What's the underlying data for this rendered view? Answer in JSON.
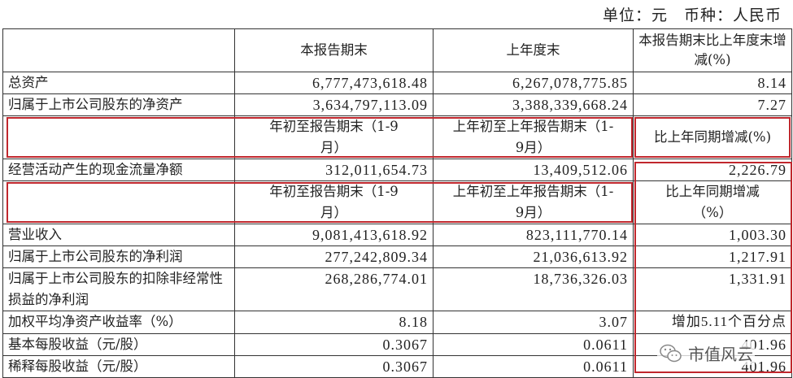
{
  "unit_line": "单位：元　币种：人民币",
  "header1": {
    "c1": "本报告期末",
    "c2": "上年度末",
    "c3": "本报告期末比上年度末增减(%)"
  },
  "rows1": [
    {
      "label": "总资产",
      "v1": "6,777,473,618.48",
      "v2": "6,267,078,775.85",
      "v3": "8.14"
    },
    {
      "label": "归属于上市公司股东的净资产",
      "v1": "3,634,797,113.09",
      "v2": "3,388,339,668.24",
      "v3": "7.27"
    }
  ],
  "header2": {
    "c1": "年初至报告期末（1-9月）",
    "c2": "上年初至上年报告期末（1-9月）",
    "c3": "比上年同期增减(%)"
  },
  "rows2": [
    {
      "label": "经营活动产生的现金流量净额",
      "v1": "312,011,654.73",
      "v2": "13,409,512.06",
      "v3": "2,226.79"
    }
  ],
  "header3": {
    "c1": "年初至报告期末（1-9月）",
    "c2": "上年初至上年报告期末（1-9月）",
    "c3": "比上年同期增减（%）"
  },
  "rows3": [
    {
      "label": "营业收入",
      "v1": "9,081,413,618.92",
      "v2": "823,111,770.14",
      "v3": "1,003.30"
    },
    {
      "label": "归属于上市公司股东的净利润",
      "v1": "277,242,809.34",
      "v2": "21,036,613.92",
      "v3": "1,217.91"
    },
    {
      "label": "归属于上市公司股东的扣除非经常性损益的净利润",
      "v1": "268,286,774.01",
      "v2": "18,736,326.03",
      "v3": "1,331.91"
    },
    {
      "label": "加权平均净资产收益率（%）",
      "v1": "8.18",
      "v2": "3.07",
      "v3": "增加5.11个百分点"
    },
    {
      "label": "基本每股收益（元/股）",
      "v1": "0.3067",
      "v2": "0.0611",
      "v3": "401.96"
    },
    {
      "label": "稀释每股收益（元/股）",
      "v1": "0.3067",
      "v2": "0.0611",
      "v3": "401.96"
    }
  ],
  "watermark": {
    "text": "市值风云",
    "icon": "wechat-icon"
  },
  "colors": {
    "highlight": "#c0272d"
  }
}
